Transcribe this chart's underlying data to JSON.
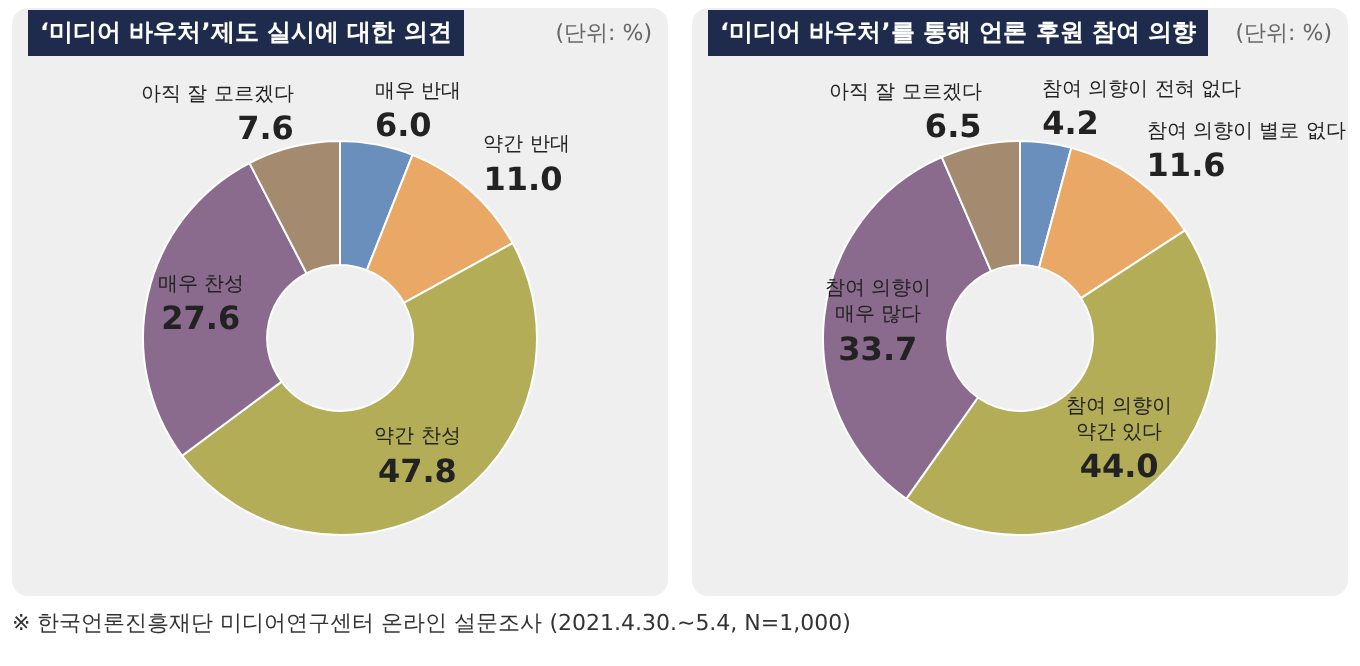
{
  "chart_data": [
    {
      "type": "donut",
      "title": "‘미디어 바우처’제도 실시에 대한 의견",
      "subtitle": "(단위: %)",
      "categories": [
        "매우 반대",
        "약간 반대",
        "약간 찬성",
        "매우 찬성",
        "아직 잘 모르겠다"
      ],
      "values": [
        6.0,
        11.0,
        47.8,
        27.6,
        7.6
      ],
      "value_labels": [
        "6.0",
        "11.0",
        "47.8",
        "27.6",
        "7.6"
      ],
      "colors": [
        "#6b8fbd",
        "#e9a866",
        "#b3ad58",
        "#8a6b8e",
        "#a48b70"
      ],
      "data_labels": true,
      "legend": false,
      "annotations": [
        "※ 한국언론진흥재단 미디어연구센터 온라인 설문조사 (2021.4.30.~5.4, N=1,000)"
      ]
    },
    {
      "type": "donut",
      "title": "‘미디어 바우처’를 통해 언론 후원 참여 의향",
      "subtitle": "(단위: %)",
      "categories": [
        "참여 의향이 전혀 없다",
        "참여 의향이 별로 없다",
        "참여 의향이 약간 있다",
        "참여 의향이 매우 많다",
        "아직 잘 모르겠다"
      ],
      "values": [
        4.2,
        11.6,
        44.0,
        33.7,
        6.5
      ],
      "value_labels": [
        "4.2",
        "11.6",
        "44.0",
        "33.7",
        "6.5"
      ],
      "colors": [
        "#6b8fbd",
        "#e9a866",
        "#b3ad58",
        "#8a6b8e",
        "#a48b70"
      ],
      "data_labels": true,
      "legend": false
    }
  ]
}
